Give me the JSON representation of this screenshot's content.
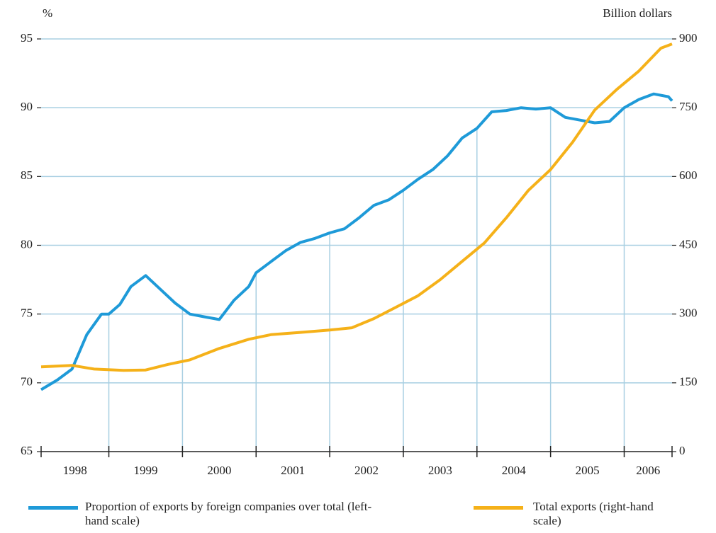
{
  "chart_data": {
    "type": "line",
    "y_axis_label": "%",
    "y2_axis_label": "Billion dollars",
    "xlim": [
      1998.08,
      2006.65
    ],
    "xticks": [
      1999,
      2000,
      2001,
      2002,
      2003,
      2004,
      2005,
      2006
    ],
    "year_labels": [
      1998,
      1999,
      2000,
      2001,
      2002,
      2003,
      2004,
      2005,
      2006
    ],
    "ylim": [
      65,
      95
    ],
    "yticks": [
      65,
      70,
      75,
      80,
      85,
      90,
      95
    ],
    "y2lim": [
      0,
      900
    ],
    "y2ticks": [
      0,
      150,
      300,
      450,
      600,
      750,
      900
    ],
    "grid": true,
    "legend": "bottom",
    "series": [
      {
        "name": "Proportion of exports by foreign companies over total (left-hand scale)",
        "color": "#1e9ad8",
        "x": [
          1998.08,
          1998.3,
          1998.5,
          1998.7,
          1998.9,
          1999.0,
          1999.15,
          1999.3,
          1999.5,
          1999.7,
          1999.9,
          2000.1,
          2000.3,
          2000.5,
          2000.7,
          2000.9,
          2001.0,
          2001.2,
          2001.4,
          2001.6,
          2001.8,
          2002.0,
          2002.2,
          2002.4,
          2002.6,
          2002.8,
          2003.0,
          2003.2,
          2003.4,
          2003.6,
          2003.8,
          2004.0,
          2004.2,
          2004.4,
          2004.6,
          2004.8,
          2005.0,
          2005.2,
          2005.4,
          2005.6,
          2005.8,
          2006.0,
          2006.2,
          2006.4,
          2006.6,
          2006.65
        ],
        "values": [
          69.5,
          70.2,
          71,
          73.5,
          75,
          75,
          75.7,
          77,
          77.8,
          76.8,
          75.8,
          75,
          74.8,
          74.6,
          76,
          77,
          78,
          78.8,
          79.6,
          80.2,
          80.5,
          80.9,
          81.2,
          82,
          82.9,
          83.3,
          84,
          84.8,
          85.5,
          86.5,
          87.8,
          88.5,
          89.7,
          89.8,
          90,
          89.9,
          90,
          89.3,
          89.1,
          88.9,
          89,
          90,
          90.6,
          91,
          90.8,
          90.5
        ]
      },
      {
        "name": "Total exports (right-hand scale)",
        "color": "#f5b119",
        "axis": "y2",
        "x": [
          1998.08,
          1998.5,
          1998.8,
          1999.2,
          1999.5,
          1999.8,
          2000.1,
          2000.5,
          2000.9,
          2001.2,
          2001.6,
          2002.0,
          2002.3,
          2002.6,
          2002.9,
          2003.2,
          2003.5,
          2003.8,
          2004.1,
          2004.4,
          2004.7,
          2005.0,
          2005.3,
          2005.6,
          2005.9,
          2006.2,
          2006.5,
          2006.65
        ],
        "values": [
          185,
          188,
          180,
          177,
          178,
          190,
          200,
          225,
          245,
          255,
          260,
          265,
          270,
          290,
          315,
          340,
          375,
          415,
          455,
          510,
          570,
          615,
          675,
          745,
          790,
          830,
          880,
          889
        ]
      }
    ]
  }
}
